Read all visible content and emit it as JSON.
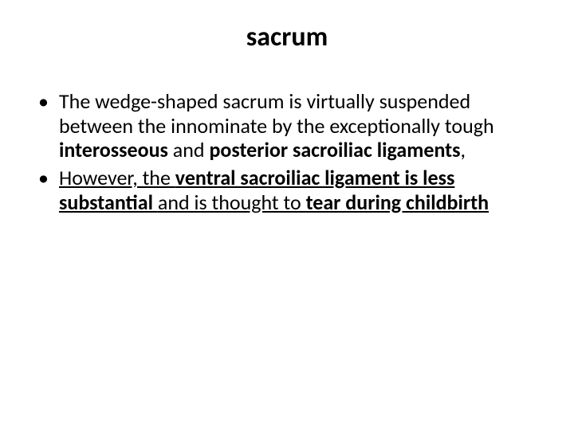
{
  "slide": {
    "title": "sacrum",
    "title_fontsize": 34,
    "title_weight": "bold",
    "title_color": "#000000",
    "body_fontsize": 26,
    "body_color": "#000000",
    "background_color": "#ffffff",
    "bullets": [
      {
        "runs": [
          {
            "text": "The wedge-shaped sacrum is virtually suspended between the innominate by the exceptionally tough ",
            "bold": false,
            "underline": false
          },
          {
            "text": "interosseous",
            "bold": true,
            "underline": false
          },
          {
            "text": " and ",
            "bold": false,
            "underline": false
          },
          {
            "text": "posterior sacroiliac ligaments",
            "bold": true,
            "underline": false
          },
          {
            "text": ",",
            "bold": false,
            "underline": false
          }
        ]
      },
      {
        "runs": [
          {
            "text": "However, the ",
            "bold": false,
            "underline": true
          },
          {
            "text": "ventral sacroiliac ligament is less substantial ",
            "bold": true,
            "underline": true
          },
          {
            "text": "and is thought to ",
            "bold": false,
            "underline": true
          },
          {
            "text": "tear during childbirth",
            "bold": true,
            "underline": true
          }
        ]
      }
    ]
  }
}
